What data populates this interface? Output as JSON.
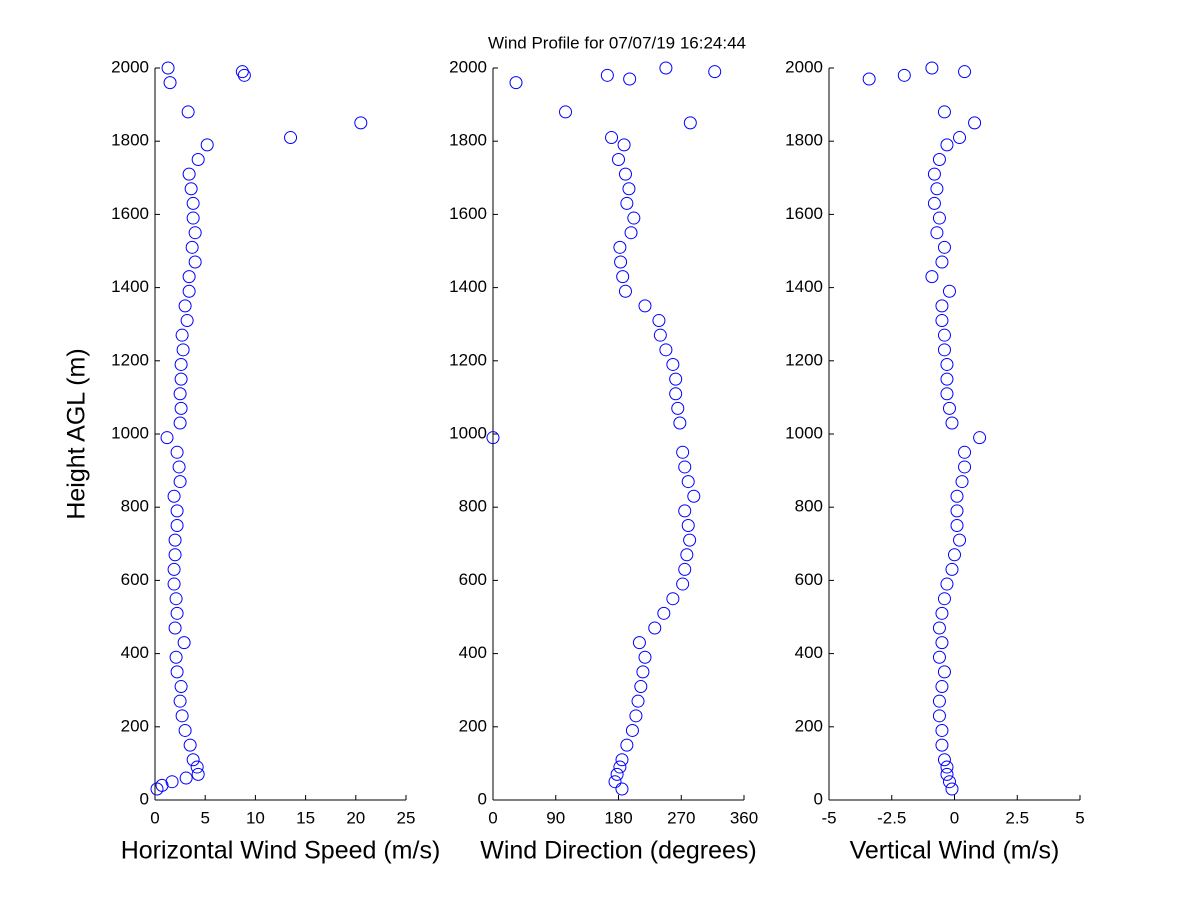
{
  "title": "Wind Profile for  07/07/19 16:24:44",
  "chart_data": [
    {
      "type": "scatter",
      "color": "#0000ff",
      "xlabel": "Horizontal Wind Speed (m/s)",
      "ylabel": "Height AGL (m)",
      "xlim": [
        0,
        25
      ],
      "xticks": [
        0,
        5,
        10,
        15,
        20,
        25
      ],
      "ylim": [
        0,
        2000
      ],
      "yticks": [
        0,
        200,
        400,
        600,
        800,
        1000,
        1200,
        1400,
        1600,
        1800,
        2000
      ],
      "y": [
        30,
        40,
        50,
        60,
        70,
        90,
        110,
        150,
        190,
        230,
        270,
        310,
        350,
        390,
        430,
        470,
        510,
        550,
        590,
        630,
        670,
        710,
        750,
        790,
        830,
        870,
        910,
        950,
        990,
        1030,
        1070,
        1110,
        1150,
        1190,
        1230,
        1270,
        1310,
        1350,
        1390,
        1430,
        1470,
        1510,
        1550,
        1590,
        1630,
        1670,
        1710,
        1750,
        1790,
        1810,
        1850,
        1880,
        1960,
        1980,
        1990,
        2000
      ],
      "x": [
        0.2,
        0.7,
        1.7,
        3.1,
        4.3,
        4.2,
        3.8,
        3.5,
        3.0,
        2.7,
        2.5,
        2.6,
        2.2,
        2.1,
        2.9,
        2.0,
        2.2,
        2.1,
        1.9,
        1.9,
        2.0,
        2.0,
        2.2,
        2.2,
        1.9,
        2.5,
        2.4,
        2.2,
        1.2,
        2.5,
        2.6,
        2.5,
        2.6,
        2.6,
        2.8,
        2.7,
        3.2,
        3.0,
        3.4,
        3.4,
        4.0,
        3.7,
        4.0,
        3.8,
        3.8,
        3.6,
        3.4,
        4.3,
        5.2,
        13.5,
        20.5,
        3.3,
        1.5,
        8.9,
        8.7,
        1.3
      ]
    },
    {
      "type": "scatter",
      "color": "#0000ff",
      "xlabel": "Wind Direction (degrees)",
      "xlim": [
        0,
        360
      ],
      "xticks": [
        0,
        90,
        180,
        270,
        360
      ],
      "ylim": [
        0,
        2000
      ],
      "yticks": [
        0,
        200,
        400,
        600,
        800,
        1000,
        1200,
        1400,
        1600,
        1800,
        2000
      ],
      "y": [
        30,
        50,
        70,
        90,
        110,
        150,
        190,
        230,
        270,
        310,
        350,
        390,
        430,
        470,
        510,
        550,
        590,
        630,
        670,
        710,
        750,
        790,
        830,
        870,
        910,
        950,
        990,
        1030,
        1070,
        1110,
        1150,
        1190,
        1230,
        1270,
        1310,
        1350,
        1390,
        1430,
        1470,
        1510,
        1550,
        1590,
        1630,
        1670,
        1710,
        1750,
        1790,
        1810,
        1850,
        1880,
        1960,
        1970,
        1980,
        1990,
        2000
      ],
      "x": [
        185,
        175,
        178,
        182,
        185,
        192,
        200,
        205,
        208,
        212,
        215,
        218,
        210,
        232,
        245,
        258,
        272,
        275,
        278,
        282,
        280,
        275,
        288,
        280,
        275,
        272,
        0,
        268,
        265,
        262,
        262,
        258,
        248,
        240,
        238,
        218,
        190,
        186,
        183,
        182,
        198,
        202,
        192,
        195,
        190,
        180,
        188,
        170,
        283,
        104,
        33,
        196,
        164,
        318,
        248
      ]
    },
    {
      "type": "scatter",
      "color": "#0000ff",
      "xlabel": "Vertical Wind (m/s)",
      "xlim": [
        -5,
        5
      ],
      "xticks": [
        -5,
        -2.5,
        0,
        2.5,
        5
      ],
      "ylim": [
        0,
        2000
      ],
      "yticks": [
        0,
        200,
        400,
        600,
        800,
        1000,
        1200,
        1400,
        1600,
        1800,
        2000
      ],
      "y": [
        30,
        50,
        70,
        90,
        110,
        150,
        190,
        230,
        270,
        310,
        350,
        390,
        430,
        470,
        510,
        550,
        590,
        630,
        670,
        710,
        750,
        790,
        830,
        870,
        910,
        950,
        990,
        1030,
        1070,
        1110,
        1150,
        1190,
        1230,
        1270,
        1310,
        1350,
        1390,
        1430,
        1470,
        1510,
        1550,
        1590,
        1630,
        1670,
        1710,
        1750,
        1790,
        1810,
        1850,
        1880,
        1970,
        1980,
        1990,
        2000
      ],
      "x": [
        -0.1,
        -0.2,
        -0.3,
        -0.3,
        -0.4,
        -0.5,
        -0.5,
        -0.6,
        -0.6,
        -0.5,
        -0.4,
        -0.6,
        -0.5,
        -0.6,
        -0.5,
        -0.4,
        -0.3,
        -0.1,
        0.0,
        0.2,
        0.1,
        0.1,
        0.1,
        0.3,
        0.4,
        0.4,
        1.0,
        -0.1,
        -0.2,
        -0.3,
        -0.3,
        -0.3,
        -0.4,
        -0.4,
        -0.5,
        -0.5,
        -0.2,
        -0.9,
        -0.5,
        -0.4,
        -0.7,
        -0.6,
        -0.8,
        -0.7,
        -0.8,
        -0.6,
        -0.3,
        0.2,
        0.8,
        -0.4,
        -3.4,
        -2.0,
        0.4,
        -0.9
      ]
    }
  ]
}
